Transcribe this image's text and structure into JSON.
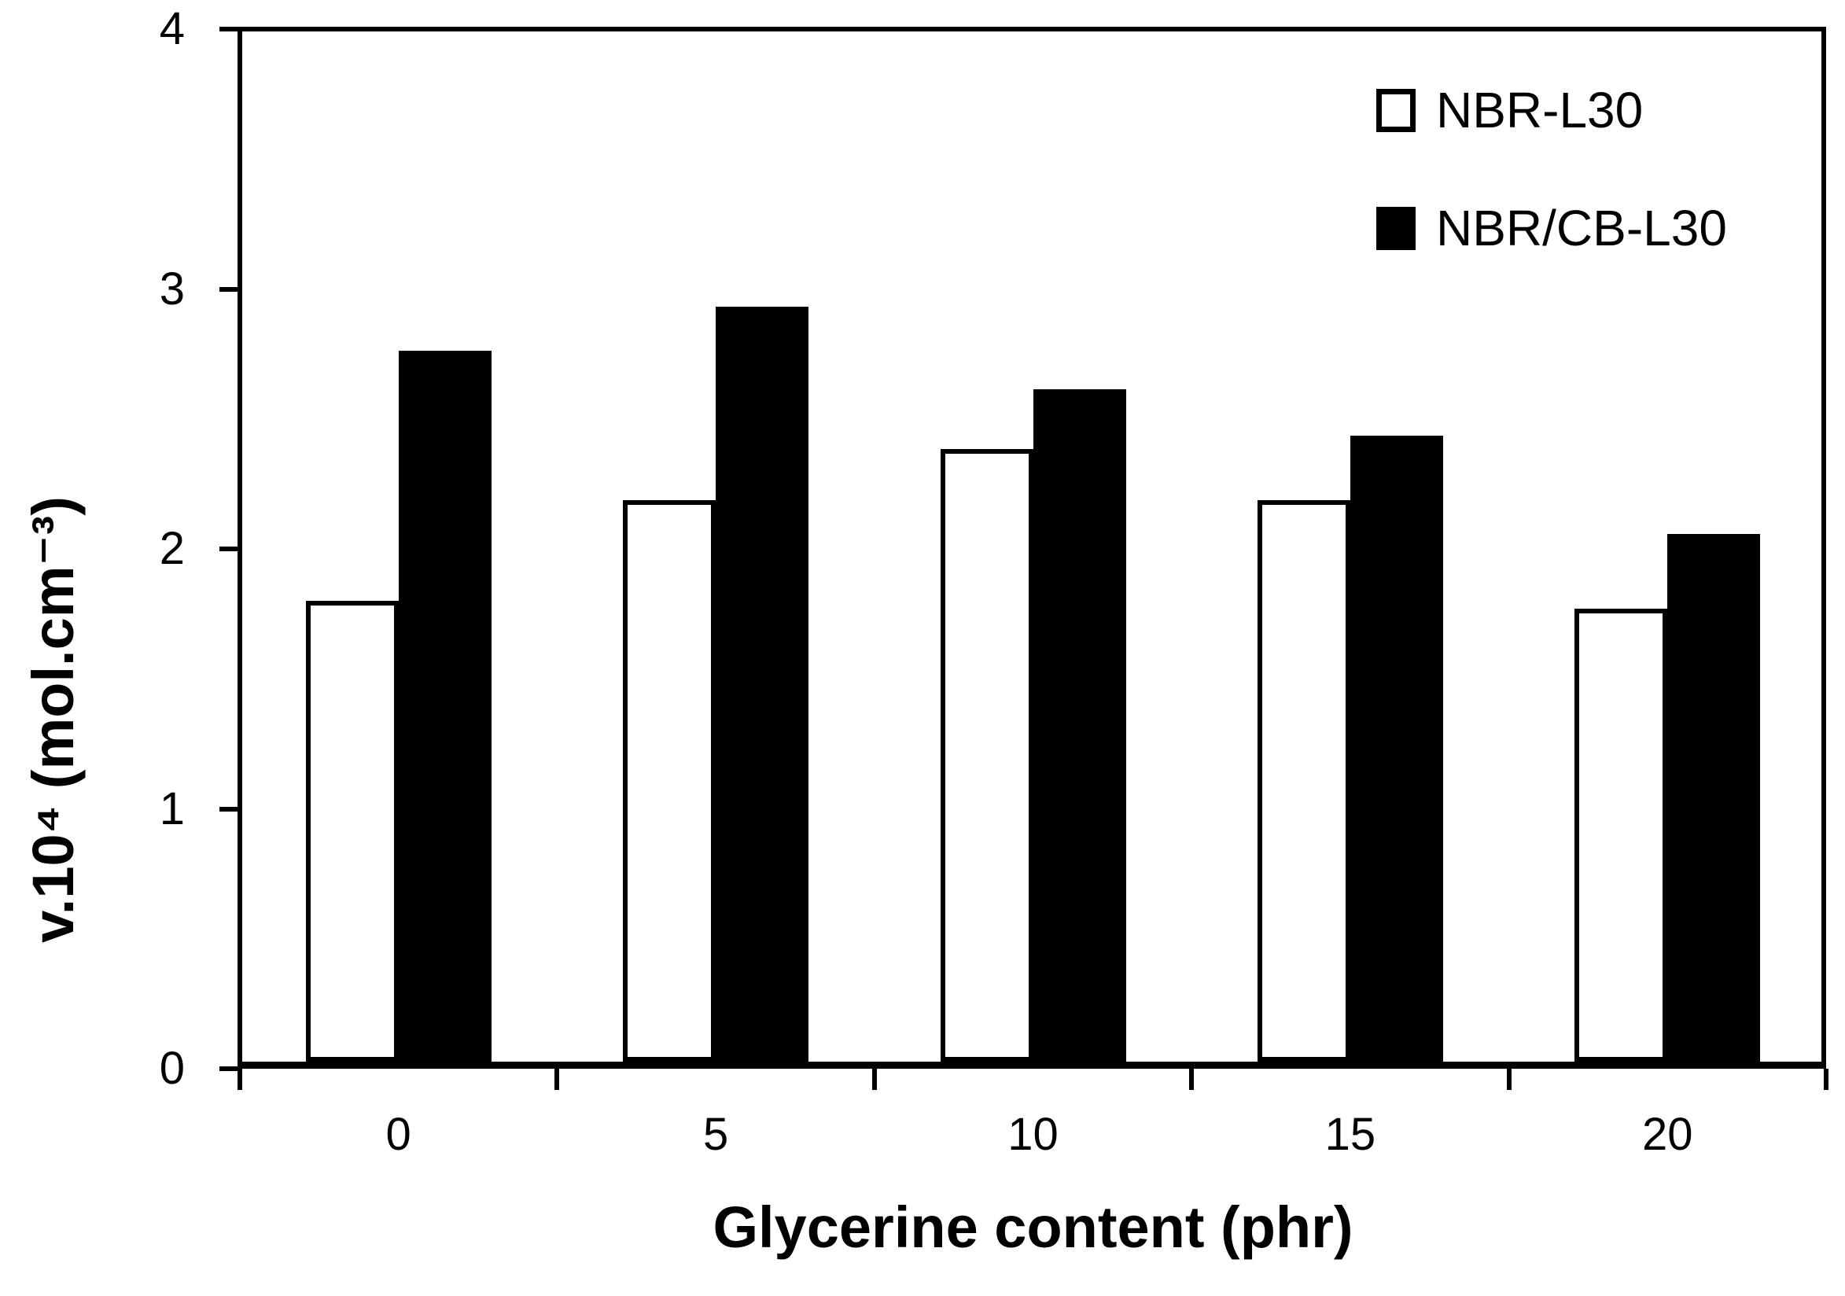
{
  "chart_data": {
    "type": "bar",
    "title": "",
    "xlabel": "Glycerine content (phr)",
    "ylabel": "v.10⁴ (mol.cm⁻³)",
    "categories": [
      "0",
      "5",
      "10",
      "15",
      "20"
    ],
    "yticks": [
      "0",
      "1",
      "2",
      "3",
      "4"
    ],
    "ylim": [
      0,
      4
    ],
    "grid": false,
    "legend_position": "top-right-inside",
    "background_color": "#ffffff",
    "axis_color": "#000000",
    "series": [
      {
        "name": "NBR-L30",
        "swatch": "open",
        "fill": "#ffffff",
        "outline": "#000000",
        "values": [
          1.79,
          2.18,
          2.38,
          2.18,
          1.76
        ]
      },
      {
        "name": "NBR/CB-L30",
        "swatch": "filled",
        "fill": "#000000",
        "outline": "#000000",
        "values": [
          2.76,
          2.93,
          2.61,
          2.43,
          2.05
        ]
      }
    ]
  }
}
